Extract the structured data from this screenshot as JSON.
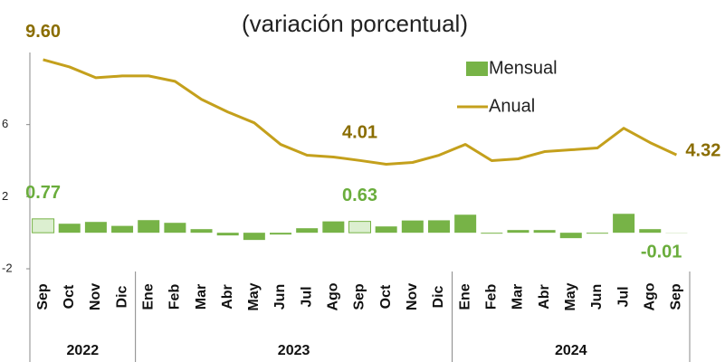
{
  "chart_data": {
    "type": "bar-line",
    "title": "(variación porcentual)",
    "categories": [
      "Sep",
      "Oct",
      "Nov",
      "Dic",
      "Ene",
      "Feb",
      "Mar",
      "Abr",
      "May",
      "Jun",
      "Jul",
      "Ago",
      "Sep",
      "Oct",
      "Nov",
      "Dic",
      "Ene",
      "Feb",
      "Mar",
      "Abr",
      "May",
      "Jun",
      "Jul",
      "Ago",
      "Sep"
    ],
    "groups": [
      {
        "label": "2022",
        "span": 4
      },
      {
        "label": "2023",
        "span": 12
      },
      {
        "label": "2024",
        "span": 9
      }
    ],
    "series": [
      {
        "name": "Mensual",
        "kind": "bar",
        "color": "#77b347",
        "label_color": "#6aad3c",
        "colors": [
          "#dcefd0",
          "#77b347",
          "#77b347",
          "#77b347",
          "#77b347",
          "#77b347",
          "#77b347",
          "#77b347",
          "#77b347",
          "#77b347",
          "#77b347",
          "#77b347",
          "#dcefd0",
          "#77b347",
          "#77b347",
          "#77b347",
          "#77b347",
          "#77b347",
          "#77b347",
          "#77b347",
          "#77b347",
          "#77b347",
          "#77b347",
          "#77b347",
          "#77b347"
        ],
        "values": [
          0.77,
          0.5,
          0.6,
          0.38,
          0.7,
          0.55,
          0.2,
          -0.15,
          -0.4,
          -0.1,
          0.25,
          0.63,
          0.63,
          0.35,
          0.68,
          0.69,
          1.0,
          -0.05,
          0.15,
          0.15,
          -0.3,
          -0.05,
          1.05,
          0.2,
          -0.01
        ],
        "value_labels": [
          "0.77",
          null,
          null,
          null,
          null,
          null,
          null,
          null,
          null,
          null,
          null,
          null,
          "0.63",
          null,
          null,
          null,
          null,
          null,
          null,
          null,
          null,
          null,
          null,
          null,
          "-0.01"
        ]
      },
      {
        "name": "Anual",
        "kind": "line",
        "color": "#c4a01c",
        "label_color": "#8a6d00",
        "values": [
          9.6,
          9.2,
          8.6,
          8.7,
          8.7,
          8.4,
          7.4,
          6.7,
          6.1,
          4.9,
          4.3,
          4.2,
          4.01,
          3.8,
          3.9,
          4.3,
          4.9,
          4.0,
          4.1,
          4.5,
          4.6,
          4.7,
          5.8,
          5.0,
          4.32
        ],
        "value_labels": [
          "9.60",
          null,
          null,
          null,
          null,
          null,
          null,
          null,
          null,
          null,
          null,
          null,
          "4.01",
          null,
          null,
          null,
          null,
          null,
          null,
          null,
          null,
          null,
          null,
          null,
          "4.32"
        ]
      }
    ],
    "ylim": [
      -2,
      10
    ],
    "yticks": [
      -2,
      2,
      6
    ],
    "legend": "upper right"
  }
}
